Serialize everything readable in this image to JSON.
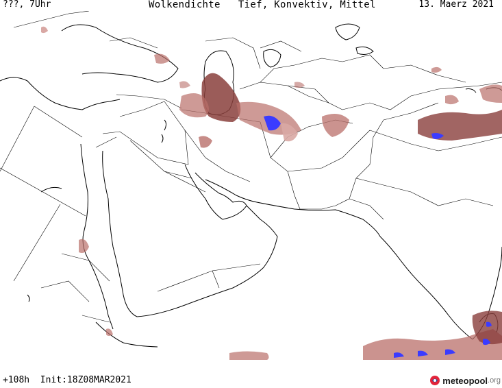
{
  "header": {
    "left": "???, 7Uhr",
    "center": "Wolkendichte   Tief, Konvektiv, Mittel",
    "right": "13. Maerz 2021"
  },
  "footer": {
    "run": "+108h  Init:18Z08MAR2021"
  },
  "logo": {
    "brand": "meteopool",
    "suffix": ".org"
  },
  "colors": {
    "cloud_light": "#d9a8a4",
    "cloud_mid": "#b96f6a",
    "cloud_dark": "#8a3f3c",
    "cloud_convective": "#3b3bff",
    "coast": "#000000",
    "border": "#000000"
  }
}
